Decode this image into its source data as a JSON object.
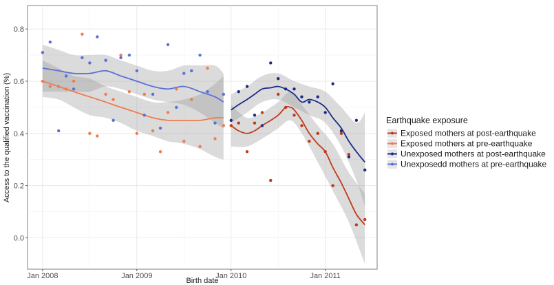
{
  "chart_data": {
    "type": "scatter",
    "xlabel": "Birth date",
    "ylabel": "Access to the qualified vaccination (%)",
    "x_ticks": [
      {
        "label": "Jan 2008",
        "value": 2008.0
      },
      {
        "label": "Jan 2009",
        "value": 2009.0
      },
      {
        "label": "Jan 2010",
        "value": 2010.0
      },
      {
        "label": "Jan 2011",
        "value": 2011.0
      }
    ],
    "y_ticks": [
      {
        "label": "0.0",
        "value": 0.0
      },
      {
        "label": "0.2",
        "value": 0.2
      },
      {
        "label": "0.4",
        "value": 0.4
      },
      {
        "label": "0.6",
        "value": 0.6
      },
      {
        "label": "0.8",
        "value": 0.8
      }
    ],
    "xlim": [
      2007.84,
      2011.55
    ],
    "ylim": [
      -0.12,
      0.89
    ],
    "grid": true,
    "legend": {
      "title": "Earthquake exposure",
      "position": "right",
      "entries": [
        {
          "label": "Exposed mothers at post-earthquake",
          "color": "#c0391b"
        },
        {
          "label": "Exposed mothers at pre-earthquake",
          "color": "#f07b4f"
        },
        {
          "label": "Unexposed mothers at post-earthquake",
          "color": "#1b2a8a"
        },
        {
          "label": "Unexposedd mothers at pre-earthquake",
          "color": "#5a70d6"
        }
      ]
    },
    "series": [
      {
        "name": "Exposed mothers at post-earthquake",
        "color": "#c0391b",
        "points": [
          [
            2010.0,
            0.43
          ],
          [
            2010.08,
            0.44
          ],
          [
            2010.17,
            0.33
          ],
          [
            2010.25,
            0.44
          ],
          [
            2010.33,
            0.48
          ],
          [
            2010.42,
            0.22
          ],
          [
            2010.5,
            0.55
          ],
          [
            2010.58,
            0.5
          ],
          [
            2010.67,
            0.47
          ],
          [
            2010.75,
            0.43
          ],
          [
            2010.83,
            0.37
          ],
          [
            2010.92,
            0.4
          ],
          [
            2011.0,
            0.33
          ],
          [
            2011.08,
            0.2
          ],
          [
            2011.17,
            0.4
          ],
          [
            2011.25,
            0.32
          ],
          [
            2011.33,
            0.05
          ],
          [
            2011.42,
            0.07
          ]
        ],
        "trend": [
          [
            2010.0,
            0.43
          ],
          [
            2010.08,
            0.41
          ],
          [
            2010.17,
            0.4
          ],
          [
            2010.25,
            0.41
          ],
          [
            2010.33,
            0.43
          ],
          [
            2010.42,
            0.45
          ],
          [
            2010.5,
            0.47
          ],
          [
            2010.58,
            0.5
          ],
          [
            2010.63,
            0.5
          ],
          [
            2010.67,
            0.49
          ],
          [
            2010.75,
            0.45
          ],
          [
            2010.83,
            0.4
          ],
          [
            2010.92,
            0.36
          ],
          [
            2011.0,
            0.33
          ],
          [
            2011.08,
            0.27
          ],
          [
            2011.17,
            0.21
          ],
          [
            2011.25,
            0.15
          ],
          [
            2011.33,
            0.09
          ],
          [
            2011.42,
            0.05
          ]
        ],
        "band": [
          [
            2010.0,
            0.35,
            0.51
          ],
          [
            2010.17,
            0.35,
            0.46
          ],
          [
            2010.33,
            0.38,
            0.48
          ],
          [
            2010.5,
            0.42,
            0.52
          ],
          [
            2010.63,
            0.45,
            0.56
          ],
          [
            2010.75,
            0.4,
            0.51
          ],
          [
            2010.92,
            0.29,
            0.43
          ],
          [
            2011.08,
            0.18,
            0.36
          ],
          [
            2011.25,
            0.06,
            0.25
          ],
          [
            2011.42,
            -0.1,
            0.17
          ]
        ]
      },
      {
        "name": "Exposed mothers at pre-earthquake",
        "color": "#f07b4f",
        "points": [
          [
            2008.0,
            0.6
          ],
          [
            2008.08,
            0.58
          ],
          [
            2008.17,
            0.58
          ],
          [
            2008.25,
            0.57
          ],
          [
            2008.33,
            0.6
          ],
          [
            2008.42,
            0.78
          ],
          [
            2008.5,
            0.4
          ],
          [
            2008.58,
            0.39
          ],
          [
            2008.67,
            0.55
          ],
          [
            2008.75,
            0.53
          ],
          [
            2008.83,
            0.7
          ],
          [
            2008.92,
            0.56
          ],
          [
            2009.0,
            0.4
          ],
          [
            2009.08,
            0.55
          ],
          [
            2009.17,
            0.41
          ],
          [
            2009.25,
            0.33
          ],
          [
            2009.33,
            0.48
          ],
          [
            2009.42,
            0.57
          ],
          [
            2009.5,
            0.37
          ],
          [
            2009.58,
            0.53
          ],
          [
            2009.67,
            0.35
          ],
          [
            2009.75,
            0.65
          ],
          [
            2009.83,
            0.38
          ],
          [
            2009.92,
            0.43
          ]
        ],
        "trend": [
          [
            2008.0,
            0.6
          ],
          [
            2008.17,
            0.58
          ],
          [
            2008.33,
            0.56
          ],
          [
            2008.5,
            0.54
          ],
          [
            2008.67,
            0.52
          ],
          [
            2008.83,
            0.5
          ],
          [
            2009.0,
            0.48
          ],
          [
            2009.17,
            0.46
          ],
          [
            2009.33,
            0.45
          ],
          [
            2009.5,
            0.45
          ],
          [
            2009.67,
            0.45
          ],
          [
            2009.83,
            0.46
          ],
          [
            2009.92,
            0.46
          ]
        ]
      },
      {
        "name": "Unexposed mothers at post-earthquake",
        "color": "#1b2a8a",
        "points": [
          [
            2010.0,
            0.45
          ],
          [
            2010.08,
            0.56
          ],
          [
            2010.17,
            0.58
          ],
          [
            2010.25,
            0.47
          ],
          [
            2010.33,
            0.43
          ],
          [
            2010.42,
            0.67
          ],
          [
            2010.5,
            0.61
          ],
          [
            2010.58,
            0.57
          ],
          [
            2010.67,
            0.57
          ],
          [
            2010.75,
            0.54
          ],
          [
            2010.83,
            0.52
          ],
          [
            2010.92,
            0.54
          ],
          [
            2011.0,
            0.48
          ],
          [
            2011.08,
            0.59
          ],
          [
            2011.17,
            0.41
          ],
          [
            2011.25,
            0.31
          ],
          [
            2011.33,
            0.45
          ],
          [
            2011.42,
            0.26
          ]
        ],
        "trend": [
          [
            2010.0,
            0.49
          ],
          [
            2010.08,
            0.51
          ],
          [
            2010.17,
            0.53
          ],
          [
            2010.25,
            0.55
          ],
          [
            2010.33,
            0.57
          ],
          [
            2010.42,
            0.575
          ],
          [
            2010.5,
            0.58
          ],
          [
            2010.58,
            0.57
          ],
          [
            2010.67,
            0.55
          ],
          [
            2010.75,
            0.52
          ],
          [
            2010.83,
            0.53
          ],
          [
            2010.92,
            0.52
          ],
          [
            2011.0,
            0.5
          ],
          [
            2011.08,
            0.46
          ],
          [
            2011.17,
            0.42
          ],
          [
            2011.25,
            0.37
          ],
          [
            2011.33,
            0.33
          ],
          [
            2011.42,
            0.29
          ]
        ],
        "band": [
          [
            2010.0,
            0.44,
            0.55
          ],
          [
            2010.17,
            0.48,
            0.58
          ],
          [
            2010.33,
            0.52,
            0.62
          ],
          [
            2010.5,
            0.53,
            0.63
          ],
          [
            2010.67,
            0.5,
            0.6
          ],
          [
            2010.83,
            0.47,
            0.58
          ],
          [
            2011.0,
            0.44,
            0.56
          ],
          [
            2011.17,
            0.35,
            0.5
          ],
          [
            2011.33,
            0.22,
            0.44
          ],
          [
            2011.42,
            0.12,
            0.48
          ]
        ]
      },
      {
        "name": "Unexposedd mothers at pre-earthquake",
        "color": "#5a70d6",
        "points": [
          [
            2008.0,
            0.71
          ],
          [
            2008.08,
            0.75
          ],
          [
            2008.17,
            0.41
          ],
          [
            2008.25,
            0.62
          ],
          [
            2008.33,
            0.57
          ],
          [
            2008.42,
            0.69
          ],
          [
            2008.5,
            0.67
          ],
          [
            2008.58,
            0.77
          ],
          [
            2008.67,
            0.68
          ],
          [
            2008.75,
            0.45
          ],
          [
            2008.83,
            0.69
          ],
          [
            2008.92,
            0.7
          ],
          [
            2009.0,
            0.64
          ],
          [
            2009.08,
            0.47
          ],
          [
            2009.17,
            0.55
          ],
          [
            2009.25,
            0.42
          ],
          [
            2009.33,
            0.74
          ],
          [
            2009.42,
            0.5
          ],
          [
            2009.5,
            0.63
          ],
          [
            2009.58,
            0.64
          ],
          [
            2009.67,
            0.7
          ],
          [
            2009.75,
            0.56
          ],
          [
            2009.83,
            0.44
          ],
          [
            2009.92,
            0.55
          ]
        ],
        "trend": [
          [
            2008.0,
            0.65
          ],
          [
            2008.17,
            0.64
          ],
          [
            2008.33,
            0.63
          ],
          [
            2008.5,
            0.63
          ],
          [
            2008.67,
            0.64
          ],
          [
            2008.83,
            0.62
          ],
          [
            2009.0,
            0.6
          ],
          [
            2009.17,
            0.58
          ],
          [
            2009.33,
            0.57
          ],
          [
            2009.5,
            0.58
          ],
          [
            2009.67,
            0.56
          ],
          [
            2009.83,
            0.54
          ],
          [
            2009.92,
            0.52
          ]
        ]
      }
    ],
    "pre_bands": [
      [
        2008.0,
        0.56,
        0.74
      ],
      [
        2008.17,
        0.56,
        0.72
      ],
      [
        2008.33,
        0.56,
        0.7
      ],
      [
        2008.5,
        0.56,
        0.7
      ],
      [
        2008.67,
        0.58,
        0.7
      ],
      [
        2008.83,
        0.57,
        0.68
      ],
      [
        2009.0,
        0.55,
        0.66
      ],
      [
        2009.17,
        0.53,
        0.64
      ],
      [
        2009.33,
        0.52,
        0.64
      ],
      [
        2009.5,
        0.51,
        0.66
      ],
      [
        2009.67,
        0.48,
        0.66
      ],
      [
        2009.83,
        0.44,
        0.66
      ],
      [
        2009.92,
        0.42,
        0.63
      ]
    ],
    "pre_bands_lower": [
      [
        2008.0,
        0.54,
        0.68
      ],
      [
        2008.17,
        0.53,
        0.65
      ],
      [
        2008.33,
        0.5,
        0.62
      ],
      [
        2008.5,
        0.47,
        0.61
      ],
      [
        2008.67,
        0.46,
        0.58
      ],
      [
        2008.83,
        0.44,
        0.56
      ],
      [
        2009.0,
        0.41,
        0.54
      ],
      [
        2009.17,
        0.39,
        0.52
      ],
      [
        2009.33,
        0.37,
        0.52
      ],
      [
        2009.5,
        0.36,
        0.53
      ],
      [
        2009.67,
        0.34,
        0.55
      ],
      [
        2009.83,
        0.31,
        0.59
      ],
      [
        2009.92,
        0.3,
        0.62
      ]
    ]
  }
}
